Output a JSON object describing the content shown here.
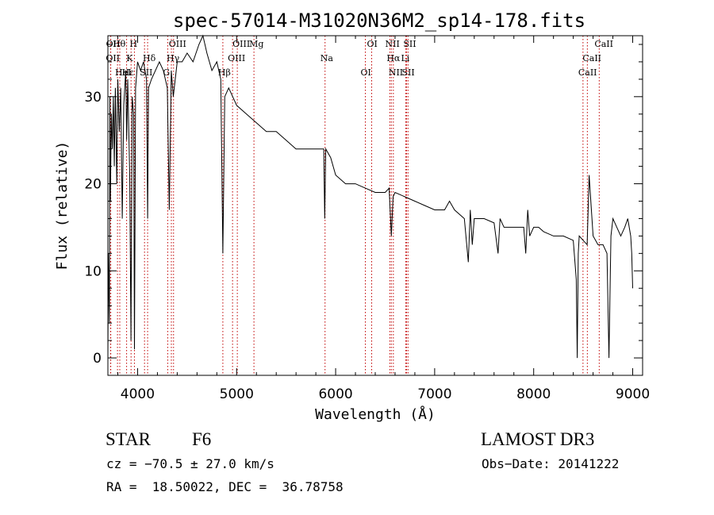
{
  "chart_data": {
    "type": "line",
    "title": "spec-57014-M31020N36M2_sp14-178.fits",
    "xlabel": "Wavelength (Å)",
    "ylabel": "Flux (relative)",
    "xlim": [
      3700,
      9100
    ],
    "ylim": [
      -2,
      37
    ],
    "xticks": [
      4000,
      5000,
      6000,
      7000,
      8000,
      9000
    ],
    "yticks": [
      0,
      10,
      20,
      30
    ],
    "series": [
      {
        "name": "spectrum",
        "x": [
          3700,
          3705,
          3715,
          3720,
          3725,
          3735,
          3745,
          3755,
          3765,
          3775,
          3790,
          3800,
          3815,
          3830,
          3845,
          3860,
          3880,
          3890,
          3900,
          3920,
          3933,
          3945,
          3960,
          3968,
          3980,
          4000,
          4030,
          4060,
          4090,
          4101,
          4110,
          4140,
          4180,
          4220,
          4260,
          4300,
          4320,
          4340,
          4360,
          4400,
          4450,
          4500,
          4560,
          4620,
          4660,
          4700,
          4750,
          4800,
          4840,
          4861,
          4880,
          4920,
          4960,
          5000,
          5100,
          5200,
          5300,
          5400,
          5500,
          5600,
          5700,
          5800,
          5880,
          5890,
          5900,
          5950,
          6000,
          6100,
          6200,
          6300,
          6400,
          6500,
          6540,
          6563,
          6580,
          6600,
          6700,
          6800,
          6900,
          7000,
          7100,
          7150,
          7200,
          7300,
          7340,
          7360,
          7380,
          7400,
          7500,
          7600,
          7640,
          7660,
          7700,
          7800,
          7900,
          7920,
          7940,
          7960,
          8000,
          8050,
          8100,
          8200,
          8300,
          8400,
          8430,
          8440,
          8450,
          8460,
          8500,
          8540,
          8560,
          8600,
          8650,
          8700,
          8740,
          8760,
          8780,
          8800,
          8840,
          8880,
          8920,
          8950,
          8980,
          8990,
          9000
        ],
        "values": [
          0,
          12,
          4,
          30,
          18,
          28,
          24,
          30,
          22,
          31,
          20,
          32,
          26,
          31,
          16,
          29,
          33,
          25,
          32,
          21,
          2,
          30,
          28,
          1,
          31,
          34,
          33,
          34,
          32,
          16,
          31,
          32,
          33,
          34,
          33,
          31,
          17,
          33,
          30,
          34,
          34,
          35,
          34,
          36,
          37,
          35,
          33,
          34,
          32,
          12,
          30,
          31,
          30,
          29,
          28,
          27,
          26,
          26,
          25,
          24,
          24,
          24,
          24,
          16,
          24,
          23,
          21,
          20,
          20,
          19.5,
          19,
          19,
          19.5,
          14,
          18.5,
          19,
          18.5,
          18,
          17.5,
          17,
          17,
          18,
          17,
          16,
          11,
          17,
          13,
          16,
          16,
          15.5,
          12,
          16,
          15,
          15,
          15,
          12,
          17,
          14,
          15,
          15,
          14.5,
          14,
          14,
          13.5,
          9,
          0,
          12,
          14,
          13.5,
          13,
          21,
          14,
          13,
          13,
          12,
          0,
          14,
          16,
          15,
          14,
          15,
          16,
          14,
          12,
          8
        ],
        "color": "#000000"
      }
    ],
    "lines": [
      {
        "label": "Hθ",
        "x": 3797
      },
      {
        "label": "OII",
        "x": 3727
      },
      {
        "label": "HeI",
        "x": 3820
      },
      {
        "label": "OII",
        "x": 3729
      },
      {
        "label": "K",
        "x": 3934
      },
      {
        "label": "Hε",
        "x": 3889
      },
      {
        "label": "H",
        "x": 3968
      },
      {
        "label": "Hδ",
        "x": 4101
      },
      {
        "label": "SII",
        "x": 4070
      },
      {
        "label": "OIII",
        "x": 4363
      },
      {
        "label": "Hγ",
        "x": 4341
      },
      {
        "label": "G",
        "x": 4304
      },
      {
        "label": "OIII",
        "x": 5007
      },
      {
        "label": "OIII",
        "x": 4959
      },
      {
        "label": "Hβ",
        "x": 4861
      },
      {
        "label": "Mg",
        "x": 5175
      },
      {
        "label": "Na",
        "x": 5893
      },
      {
        "label": "OI",
        "x": 6300
      },
      {
        "label": "OI",
        "x": 6364
      },
      {
        "label": "Hα",
        "x": 6563
      },
      {
        "label": "SII",
        "x": 6716
      },
      {
        "label": "NII",
        "x": 6548
      },
      {
        "label": "Li",
        "x": 6708
      },
      {
        "label": "NII",
        "x": 6583
      },
      {
        "label": "SII",
        "x": 6731
      },
      {
        "label": "CaII",
        "x": 8542
      },
      {
        "label": "CaII",
        "x": 8498
      },
      {
        "label": "CaII",
        "x": 8662
      }
    ]
  },
  "info": {
    "object_class": "STAR",
    "subclass": "F6",
    "survey": "LAMOST DR3",
    "cz": "cz = −70.5 ± 27.0 km/s",
    "obs_date": "Obs−Date: 20141222",
    "coords": "RA =  18.50022, DEC =  36.78758"
  }
}
